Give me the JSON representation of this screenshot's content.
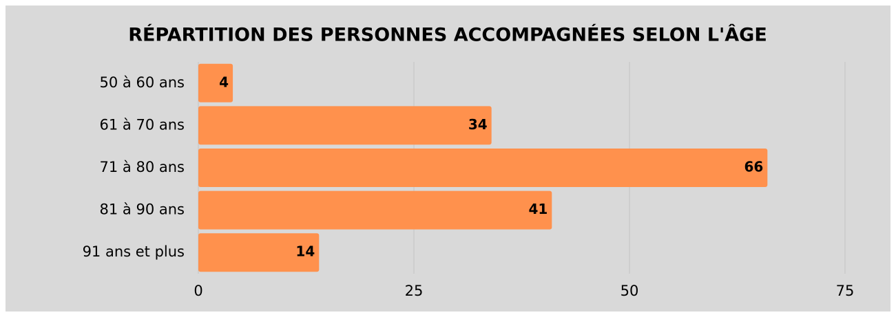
{
  "chart_data": {
    "type": "bar",
    "orientation": "horizontal",
    "title": "RÉPARTITION DES PERSONNES ACCOMPAGNÉES SELON L'ÂGE",
    "categories": [
      "50 à 60 ans",
      "61 à 70 ans",
      "71 à 80 ans",
      "81 à 90 ans",
      "91 ans et plus"
    ],
    "values": [
      4,
      34,
      66,
      41,
      14
    ],
    "color": "#ff914d",
    "xlim": [
      0,
      75
    ],
    "xticks": [
      0,
      25,
      50,
      75
    ],
    "grid": true
  }
}
